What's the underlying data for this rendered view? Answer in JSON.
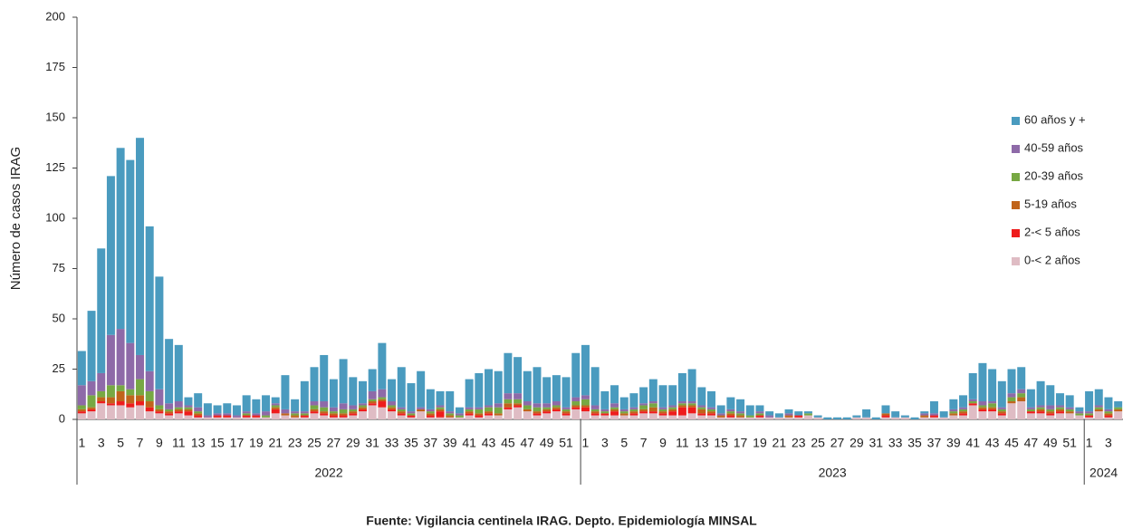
{
  "chart_data": {
    "type": "stacked-bar",
    "ylabel": "Número de casos IRAG",
    "source": "Fuente: Vigilancia centinela IRAG. Depto. Epidemiología MINSAL",
    "groups": [
      {
        "label": "2022",
        "categories": [
          "1",
          null,
          "3",
          null,
          "5",
          null,
          "7",
          null,
          "9",
          null,
          "11",
          null,
          "13",
          null,
          "15",
          null,
          "17",
          null,
          "19",
          null,
          "21",
          null,
          "23",
          null,
          "25",
          null,
          "27",
          null,
          "29",
          null,
          "31",
          null,
          "33",
          null,
          "35",
          null,
          "37",
          null,
          "39",
          null,
          "41",
          null,
          "43",
          null,
          "45",
          null,
          "47",
          null,
          "49",
          null,
          "51",
          null
        ]
      },
      {
        "label": "2023",
        "categories": [
          "1",
          null,
          "3",
          null,
          "5",
          null,
          "7",
          null,
          "9",
          null,
          "11",
          null,
          "13",
          null,
          "15",
          null,
          "17",
          null,
          "19",
          null,
          "21",
          null,
          "23",
          null,
          "25",
          null,
          "27",
          null,
          "29",
          null,
          "31",
          null,
          "33",
          null,
          "35",
          null,
          "37",
          null,
          "39",
          null,
          "41",
          null,
          "43",
          null,
          "45",
          null,
          "47",
          null,
          "49",
          null,
          "51",
          null
        ]
      },
      {
        "label": "2024",
        "categories": [
          "1",
          null,
          "3",
          null
        ]
      }
    ],
    "series": [
      {
        "name": "0-< 2 años",
        "color": "#dfbcc4",
        "values": [
          3,
          4,
          8,
          7,
          7,
          6,
          7,
          4,
          3,
          2,
          3,
          2,
          1,
          1,
          1,
          1,
          1,
          1,
          1,
          1,
          3,
          2,
          1,
          1,
          3,
          2,
          1,
          1,
          2,
          4,
          7,
          6,
          4,
          2,
          1,
          4,
          1,
          1,
          1,
          1,
          2,
          1,
          2,
          2,
          5,
          6,
          4,
          2,
          3,
          4,
          2,
          5,
          4,
          2,
          2,
          2,
          2,
          2,
          3,
          3,
          2,
          2,
          2,
          3,
          2,
          2,
          1,
          1,
          1,
          1,
          1,
          1,
          1,
          1,
          1,
          2,
          1,
          0,
          0,
          0,
          1,
          1,
          0,
          1,
          1,
          1,
          0,
          1,
          1,
          1,
          2,
          2,
          7,
          4,
          4,
          2,
          8,
          9,
          3,
          3,
          2,
          3,
          3,
          2,
          1,
          4,
          1,
          4
        ]
      },
      {
        "name": "2-< 5 años",
        "color": "#ee1c1c",
        "values": [
          1,
          1,
          1,
          1,
          2,
          2,
          2,
          2,
          1,
          1,
          1,
          2,
          1,
          0,
          1,
          1,
          0,
          1,
          1,
          0,
          2,
          0,
          0,
          1,
          1,
          1,
          1,
          1,
          1,
          1,
          1,
          3,
          1,
          1,
          1,
          0,
          1,
          3,
          0,
          0,
          1,
          1,
          1,
          0,
          1,
          1,
          0,
          1,
          1,
          1,
          1,
          1,
          2,
          1,
          1,
          2,
          0,
          1,
          1,
          1,
          1,
          2,
          4,
          3,
          1,
          1,
          0,
          1,
          0,
          0,
          1,
          0,
          0,
          0,
          1,
          0,
          0,
          0,
          0,
          0,
          0,
          0,
          0,
          1,
          0,
          0,
          0,
          0,
          1,
          0,
          0,
          1,
          1,
          1,
          1,
          1,
          0,
          0,
          1,
          1,
          1,
          1,
          0,
          0,
          1,
          0,
          1,
          0
        ]
      },
      {
        "name": "5-19 años",
        "color": "#c0641b",
        "values": [
          1,
          1,
          2,
          3,
          5,
          4,
          3,
          3,
          1,
          1,
          1,
          1,
          1,
          0,
          0,
          0,
          0,
          0,
          0,
          0,
          1,
          1,
          1,
          0,
          1,
          1,
          1,
          1,
          1,
          1,
          1,
          1,
          1,
          1,
          0,
          1,
          1,
          1,
          1,
          0,
          1,
          1,
          1,
          1,
          2,
          1,
          1,
          1,
          1,
          1,
          1,
          1,
          1,
          1,
          0,
          1,
          1,
          1,
          1,
          2,
          1,
          1,
          1,
          1,
          2,
          1,
          1,
          1,
          1,
          0,
          0,
          0,
          0,
          1,
          0,
          0,
          0,
          0,
          0,
          0,
          0,
          0,
          0,
          1,
          0,
          0,
          0,
          1,
          0,
          0,
          1,
          1,
          0,
          1,
          1,
          1,
          1,
          2,
          0,
          1,
          1,
          1,
          1,
          0,
          0,
          1,
          1,
          1
        ]
      },
      {
        "name": "20-39 años",
        "color": "#77a843",
        "values": [
          2,
          6,
          3,
          6,
          3,
          3,
          8,
          5,
          2,
          1,
          1,
          1,
          1,
          0,
          0,
          0,
          0,
          1,
          0,
          1,
          1,
          0,
          1,
          1,
          2,
          2,
          1,
          2,
          1,
          1,
          1,
          1,
          1,
          1,
          1,
          0,
          1,
          1,
          1,
          1,
          1,
          2,
          2,
          3,
          2,
          2,
          2,
          2,
          1,
          1,
          1,
          2,
          3,
          1,
          1,
          1,
          1,
          1,
          2,
          2,
          1,
          1,
          1,
          1,
          1,
          1,
          0,
          1,
          1,
          1,
          1,
          0,
          0,
          0,
          0,
          1,
          0,
          0,
          0,
          0,
          0,
          0,
          0,
          0,
          0,
          0,
          0,
          0,
          0,
          0,
          1,
          1,
          1,
          1,
          2,
          1,
          2,
          2,
          1,
          1,
          1,
          1,
          1,
          1,
          1,
          1,
          1,
          1
        ]
      },
      {
        "name": "40-59 años",
        "color": "#8e6aa8",
        "values": [
          10,
          7,
          9,
          25,
          28,
          23,
          12,
          10,
          8,
          3,
          3,
          1,
          2,
          1,
          1,
          1,
          1,
          1,
          1,
          2,
          1,
          2,
          1,
          1,
          2,
          3,
          2,
          3,
          2,
          1,
          4,
          4,
          2,
          1,
          1,
          1,
          1,
          1,
          1,
          1,
          1,
          1,
          1,
          2,
          3,
          3,
          2,
          2,
          2,
          2,
          1,
          2,
          2,
          2,
          1,
          2,
          1,
          1,
          1,
          1,
          1,
          1,
          1,
          1,
          1,
          1,
          1,
          1,
          1,
          0,
          1,
          1,
          0,
          1,
          0,
          0,
          0,
          0,
          0,
          0,
          0,
          0,
          0,
          0,
          0,
          0,
          0,
          1,
          1,
          0,
          1,
          1,
          1,
          2,
          1,
          1,
          2,
          2,
          1,
          1,
          2,
          1,
          1,
          1,
          1,
          1,
          1,
          0
        ]
      },
      {
        "name": "60 años y +",
        "color": "#4a9bbf",
        "values": [
          17,
          35,
          62,
          79,
          90,
          91,
          108,
          72,
          56,
          32,
          28,
          4,
          7,
          6,
          4,
          5,
          5,
          8,
          7,
          8,
          3,
          17,
          6,
          15,
          17,
          23,
          14,
          22,
          14,
          11,
          11,
          23,
          11,
          20,
          14,
          18,
          10,
          7,
          10,
          3,
          14,
          17,
          18,
          16,
          20,
          18,
          15,
          18,
          13,
          13,
          15,
          22,
          25,
          19,
          9,
          9,
          6,
          7,
          8,
          11,
          11,
          10,
          14,
          16,
          9,
          8,
          4,
          6,
          6,
          5,
          3,
          2,
          2,
          2,
          2,
          1,
          1,
          1,
          1,
          1,
          1,
          4,
          1,
          4,
          3,
          1,
          1,
          1,
          6,
          3,
          5,
          6,
          13,
          19,
          16,
          13,
          12,
          11,
          9,
          12,
          10,
          6,
          6,
          2,
          10,
          8,
          6,
          3
        ]
      }
    ],
    "ylim": [
      0,
      200
    ],
    "yticks": [
      0,
      25,
      50,
      75,
      100,
      125,
      150,
      175,
      200
    ],
    "grid": false
  }
}
